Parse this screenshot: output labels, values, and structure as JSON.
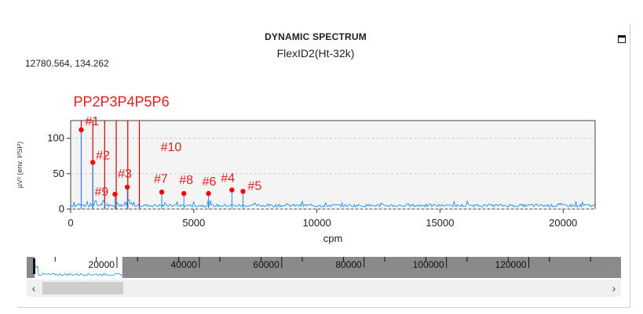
{
  "window": {
    "title": "DYNAMIC SPECTRUM",
    "subtitle": "FlexID2(Ht-32k)",
    "cursor_readout": "12780.564, 134.262"
  },
  "icons": {
    "maximize": "maximize-icon",
    "scroll_left": "chevron-left-icon",
    "scroll_right": "chevron-right-icon"
  },
  "chart_data": {
    "type": "line",
    "title": "",
    "xlabel": "cpm",
    "ylabel": "µV² (env. PSP)",
    "xlim": [
      0,
      21300
    ],
    "ylim": [
      0,
      125
    ],
    "xticks": [
      0,
      5000,
      10000,
      15000,
      20000
    ],
    "yticks": [
      0,
      50,
      100
    ],
    "line_color": "#1e90ff",
    "marker_color": "#ff0000",
    "grid": "dashed-horizontal",
    "peaks": [
      {
        "label": "#1",
        "x": 430,
        "y": 112
      },
      {
        "label": "#2",
        "x": 900,
        "y": 66
      },
      {
        "label": "#3",
        "x": 2300,
        "y": 31
      },
      {
        "label": "#4",
        "x": 6550,
        "y": 27
      },
      {
        "label": "#5",
        "x": 7000,
        "y": 25
      },
      {
        "label": "#6",
        "x": 5600,
        "y": 22
      },
      {
        "label": "#7",
        "x": 3700,
        "y": 24
      },
      {
        "label": "#8",
        "x": 4600,
        "y": 22
      },
      {
        "label": "#9",
        "x": 1800,
        "y": 21
      },
      {
        "label": "#10",
        "x": 4100,
        "y": null
      }
    ],
    "harmonic_lines": [
      430,
      900,
      1380,
      1850,
      2320,
      2790
    ],
    "harmonic_label_text": "PP2P3P4P5P6"
  },
  "navigator": {
    "ticks": [
      "20000",
      "40000",
      "60000",
      "80000",
      "100000",
      "120000"
    ],
    "tick_values": [
      20000,
      40000,
      60000,
      80000,
      100000,
      120000
    ],
    "range_max": 142000,
    "window_start": 0,
    "window_end": 21300
  }
}
